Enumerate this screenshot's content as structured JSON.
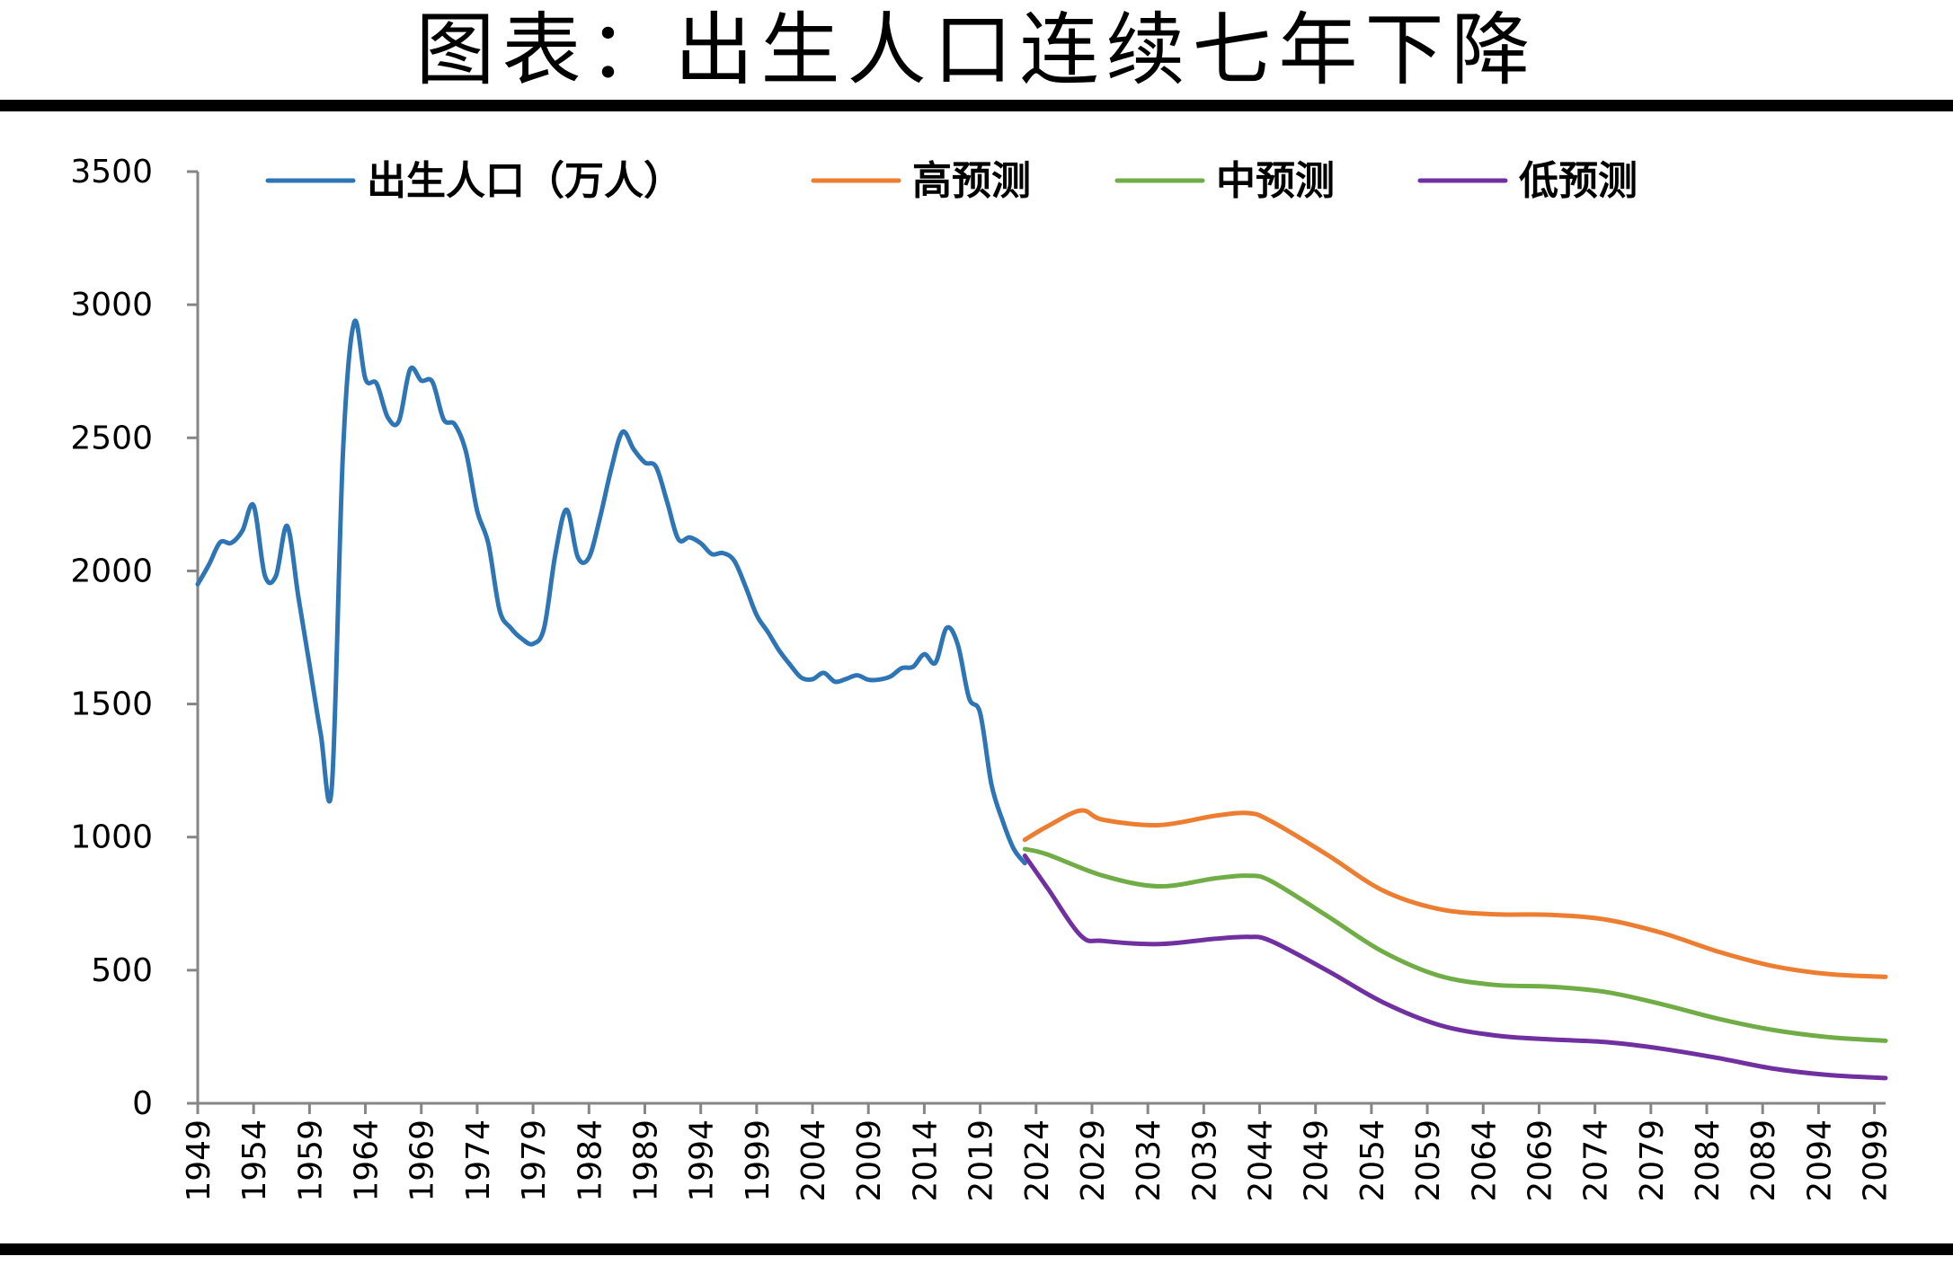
{
  "title": "图表：出生人口连续七年下降",
  "chart_data": {
    "type": "line",
    "title": "",
    "xlabel": "",
    "ylabel": "",
    "ylim": [
      0,
      3500
    ],
    "yticks": [
      0,
      500,
      1000,
      1500,
      2000,
      2500,
      3000,
      3500
    ],
    "xlim": [
      1949,
      2100
    ],
    "xticks": [
      1949,
      1954,
      1959,
      1964,
      1969,
      1974,
      1979,
      1984,
      1989,
      1994,
      1999,
      2004,
      2009,
      2014,
      2019,
      2024,
      2029,
      2034,
      2039,
      2044,
      2049,
      2054,
      2059,
      2064,
      2069,
      2074,
      2079,
      2084,
      2089,
      2094,
      2099
    ],
    "legend_position": "top",
    "grid": false,
    "series": [
      {
        "name": "出生人口（万人）",
        "color": "#2E75B6",
        "x": [
          1949,
          1950,
          1951,
          1952,
          1953,
          1954,
          1955,
          1956,
          1957,
          1958,
          1959,
          1960,
          1961,
          1962,
          1963,
          1964,
          1965,
          1966,
          1967,
          1968,
          1969,
          1970,
          1971,
          1972,
          1973,
          1974,
          1975,
          1976,
          1977,
          1978,
          1979,
          1980,
          1981,
          1982,
          1983,
          1984,
          1985,
          1986,
          1987,
          1988,
          1989,
          1990,
          1991,
          1992,
          1993,
          1994,
          1995,
          1996,
          1997,
          1998,
          1999,
          2000,
          2001,
          2002,
          2003,
          2004,
          2005,
          2006,
          2007,
          2008,
          2009,
          2010,
          2011,
          2012,
          2013,
          2014,
          2015,
          2016,
          2017,
          2018,
          2019,
          2020,
          2021,
          2022,
          2023
        ],
        "values": [
          1950,
          2023,
          2107,
          2105,
          2151,
          2245,
          1984,
          1982,
          2169,
          1904,
          1647,
          1389,
          1189,
          2451,
          2934,
          2721,
          2704,
          2577,
          2563,
          2757,
          2715,
          2710,
          2569,
          2550,
          2447,
          2226,
          2102,
          1853,
          1786,
          1745,
          1726,
          1787,
          2064,
          2230,
          2052,
          2050,
          2202,
          2384,
          2522,
          2457,
          2407,
          2391,
          2258,
          2119,
          2126,
          2104,
          2063,
          2067,
          2038,
          1942,
          1834,
          1771,
          1702,
          1647,
          1599,
          1593,
          1617,
          1584,
          1594,
          1608,
          1591,
          1592,
          1604,
          1635,
          1640,
          1687,
          1655,
          1786,
          1723,
          1523,
          1465,
          1200,
          1062,
          956,
          902
        ]
      },
      {
        "name": "高预测",
        "color": "#ED7D31",
        "x": [
          2023,
          2025,
          2028,
          2030,
          2035,
          2040,
          2043,
          2045,
          2050,
          2055,
          2060,
          2065,
          2070,
          2075,
          2080,
          2085,
          2090,
          2095,
          2100
        ],
        "values": [
          990,
          1040,
          1100,
          1065,
          1045,
          1080,
          1090,
          1060,
          935,
          800,
          730,
          710,
          708,
          690,
          640,
          570,
          515,
          485,
          475
        ]
      },
      {
        "name": "中预测",
        "color": "#70AD47",
        "x": [
          2023,
          2025,
          2030,
          2035,
          2040,
          2043,
          2045,
          2050,
          2055,
          2060,
          2065,
          2070,
          2075,
          2080,
          2085,
          2090,
          2095,
          2100
        ],
        "values": [
          955,
          935,
          855,
          815,
          845,
          855,
          835,
          705,
          570,
          480,
          445,
          438,
          418,
          372,
          318,
          275,
          248,
          235
        ]
      },
      {
        "name": "低预测",
        "color": "#7030A0",
        "x": [
          2023,
          2025,
          2028,
          2030,
          2035,
          2040,
          2043,
          2045,
          2050,
          2055,
          2060,
          2065,
          2070,
          2075,
          2080,
          2085,
          2090,
          2095,
          2100
        ],
        "values": [
          930,
          810,
          630,
          610,
          598,
          618,
          625,
          610,
          500,
          380,
          295,
          255,
          240,
          230,
          205,
          170,
          130,
          106,
          95
        ]
      }
    ]
  }
}
